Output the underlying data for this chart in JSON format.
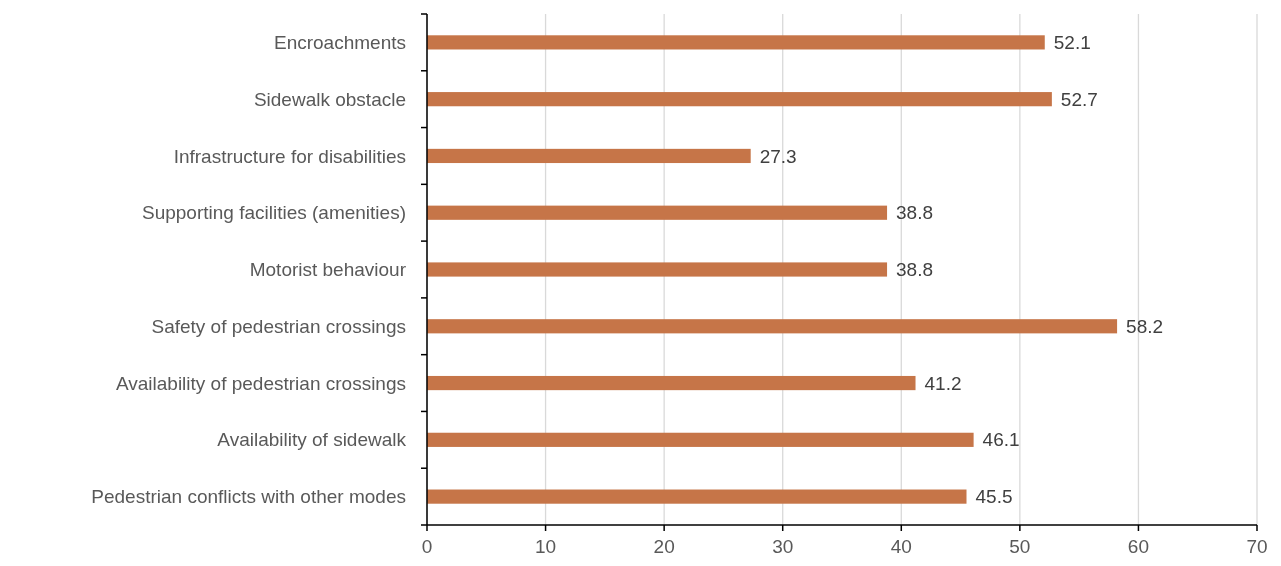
{
  "chart_data": {
    "type": "bar",
    "orientation": "horizontal",
    "categories": [
      "Encroachments",
      "Sidewalk obstacle",
      "Infrastructure for disabilities",
      "Supporting facilities (amenities)",
      "Motorist behaviour",
      "Safety of pedestrian crossings",
      "Availability of pedestrian crossings",
      "Availability of sidewalk",
      "Pedestrian conflicts with other modes"
    ],
    "values": [
      52.1,
      52.7,
      27.3,
      38.8,
      38.8,
      58.2,
      41.2,
      46.1,
      45.5
    ],
    "color": "#c67548",
    "xlim": [
      0,
      70
    ],
    "xticks": [
      0,
      10,
      20,
      30,
      40,
      50,
      60,
      70
    ],
    "grid": "x",
    "data_labels": true
  }
}
